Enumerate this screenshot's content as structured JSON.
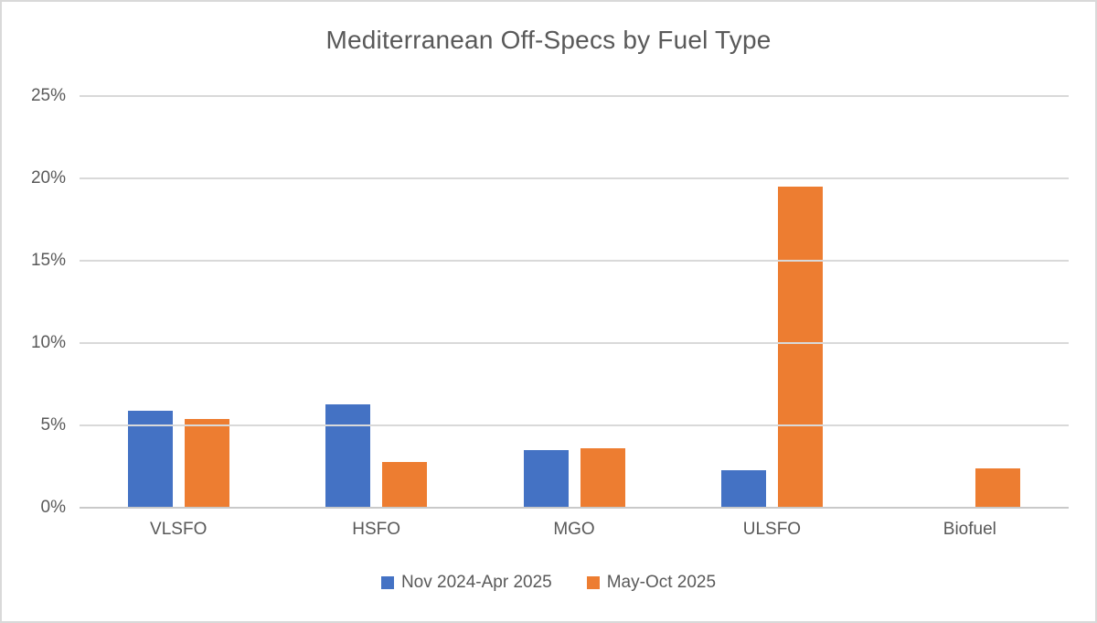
{
  "chart_data": {
    "type": "bar",
    "title": "Mediterranean Off-Specs by Fuel Type",
    "categories": [
      "VLSFO",
      "HSFO",
      "MGO",
      "ULSFO",
      "Biofuel"
    ],
    "series": [
      {
        "name": "Nov 2024-Apr 2025",
        "color": "#4472C4",
        "values": [
          5.9,
          6.3,
          3.5,
          2.3,
          0
        ]
      },
      {
        "name": "May-Oct 2025",
        "color": "#ED7D31",
        "values": [
          5.4,
          2.8,
          3.6,
          19.5,
          2.4
        ]
      }
    ],
    "xlabel": "",
    "ylabel": "",
    "ylim": [
      0,
      25
    ],
    "ytick_step": 5,
    "ytick_labels": [
      "0%",
      "5%",
      "10%",
      "15%",
      "20%",
      "25%"
    ],
    "value_unit": "%",
    "grid": true,
    "legend_position": "bottom"
  },
  "style": {
    "text_color": "#595959",
    "gridline_color": "#D9D9D9",
    "axis_line_color": "#C9C9C9",
    "background_color": "#FFFFFF",
    "border_color": "#D9D9D9"
  }
}
